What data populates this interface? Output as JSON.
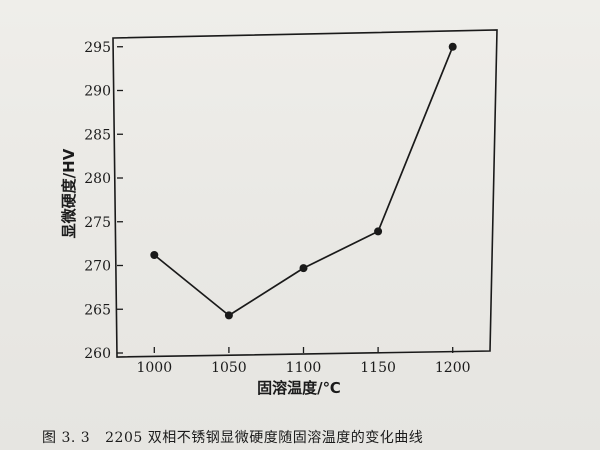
{
  "chart_data": {
    "type": "line",
    "title": "",
    "xlabel": "固溶温度/℃",
    "ylabel": "显微硬度/HV",
    "x": [
      1000,
      1050,
      1100,
      1150,
      1200
    ],
    "series": [
      {
        "values": [
          271.2,
          264.3,
          269.7,
          273.9,
          295.0
        ]
      }
    ],
    "xticks": [
      1000,
      1050,
      1100,
      1150,
      1200
    ],
    "yticks": [
      260,
      265,
      270,
      275,
      280,
      285,
      290,
      295
    ],
    "xlim": [
      975,
      1225
    ],
    "ylim": [
      260,
      296
    ],
    "grid": false,
    "legend": "none",
    "line_color": "#1a1a1a",
    "marker": "filled-circle"
  },
  "caption": {
    "figure_number": "图 3. 3",
    "text": "2205 双相不锈钢显微硬度随固溶温度的变化曲线"
  }
}
